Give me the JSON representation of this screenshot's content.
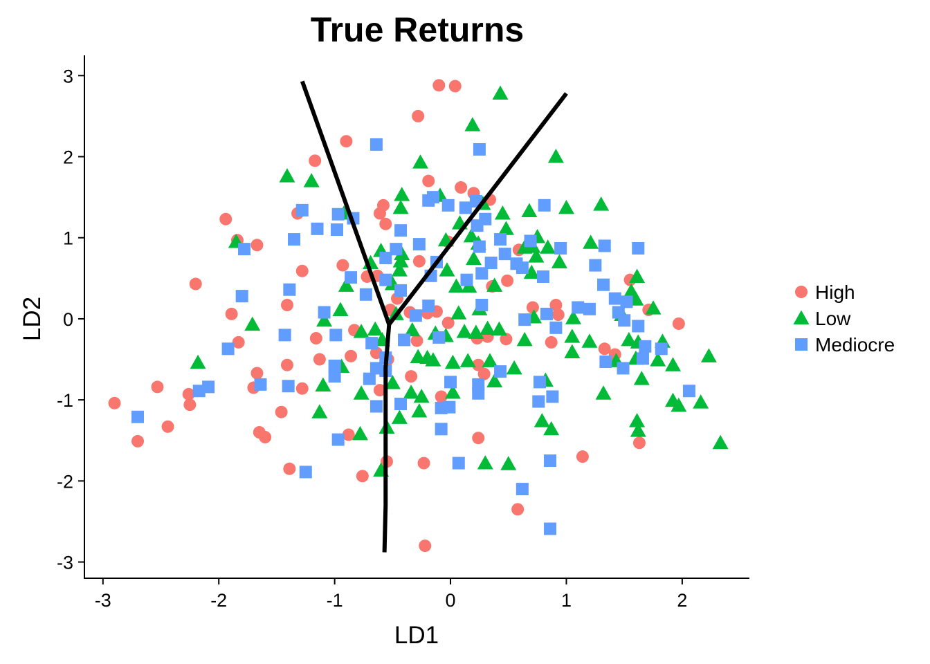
{
  "chart_data": {
    "type": "scatter",
    "title": "True Returns",
    "xlabel": "LD1",
    "ylabel": "LD2",
    "xlim": [
      -3.16,
      2.58
    ],
    "ylim": [
      -3.2,
      3.25
    ],
    "xticks": [
      -3,
      -2,
      -1,
      0,
      1,
      2
    ],
    "yticks": [
      -3,
      -2,
      -1,
      0,
      1,
      2,
      3
    ],
    "grid": false,
    "legend_position": "right",
    "series": [
      {
        "name": "High",
        "marker": "circle",
        "color": "#F8766D",
        "points": [
          [
            -0.1,
            2.88
          ],
          [
            0.04,
            2.87
          ],
          [
            -0.28,
            2.5
          ],
          [
            -0.9,
            2.19
          ],
          [
            -1.17,
            1.95
          ],
          [
            -0.19,
            1.7
          ],
          [
            0.09,
            1.62
          ],
          [
            0.2,
            1.55
          ],
          [
            -0.58,
            1.4
          ],
          [
            -0.61,
            1.3
          ],
          [
            -0.56,
            1.17
          ],
          [
            -1.32,
            1.3
          ],
          [
            -1.94,
            1.23
          ],
          [
            -1.84,
            0.97
          ],
          [
            -1.67,
            0.91
          ],
          [
            -0.02,
            0.95
          ],
          [
            0.34,
            1.47
          ],
          [
            0.59,
            0.85
          ],
          [
            -0.27,
            0.71
          ],
          [
            -1.28,
            0.59
          ],
          [
            -0.93,
            0.66
          ],
          [
            -0.72,
            0.52
          ],
          [
            -0.63,
            0.53
          ],
          [
            0.36,
            0.4
          ],
          [
            0.49,
            0.47
          ],
          [
            1.55,
            0.48
          ],
          [
            -2.2,
            0.43
          ],
          [
            -1.41,
            0.17
          ],
          [
            -0.46,
            0.25
          ],
          [
            -0.52,
            0.11
          ],
          [
            -0.35,
            0.08
          ],
          [
            -0.2,
            0.07
          ],
          [
            -0.12,
            0.09
          ],
          [
            -0.02,
            -0.05
          ],
          [
            0.71,
            0.14
          ],
          [
            0.91,
            0.17
          ],
          [
            0.93,
            0.05
          ],
          [
            1.71,
            0.11
          ],
          [
            1.97,
            -0.06
          ],
          [
            -1.89,
            0.06
          ],
          [
            -1.83,
            -0.29
          ],
          [
            -1.16,
            -0.24
          ],
          [
            -0.83,
            -0.14
          ],
          [
            -0.64,
            -0.42
          ],
          [
            -0.29,
            -0.27
          ],
          [
            0.23,
            -0.24
          ],
          [
            0.32,
            -0.22
          ],
          [
            0.48,
            -0.25
          ],
          [
            0.87,
            -0.29
          ],
          [
            1.33,
            -0.37
          ],
          [
            1.42,
            -0.44
          ],
          [
            -1.67,
            -0.67
          ],
          [
            -1.41,
            -0.57
          ],
          [
            -1.13,
            -0.5
          ],
          [
            -0.86,
            -0.46
          ],
          [
            -0.54,
            -0.5
          ],
          [
            -0.34,
            -0.71
          ],
          [
            0.24,
            -0.57
          ],
          [
            0.29,
            -0.68
          ],
          [
            -2.53,
            -0.84
          ],
          [
            -2.26,
            -0.93
          ],
          [
            -2.25,
            -1.06
          ],
          [
            -1.7,
            -0.85
          ],
          [
            -1.28,
            -0.86
          ],
          [
            -0.61,
            -0.88
          ],
          [
            -0.08,
            -0.96
          ],
          [
            -2.9,
            -1.04
          ],
          [
            -2.7,
            -1.51
          ],
          [
            -2.44,
            -1.33
          ],
          [
            -1.65,
            -1.4
          ],
          [
            -1.6,
            -1.46
          ],
          [
            -1.46,
            -1.15
          ],
          [
            -0.88,
            -1.43
          ],
          [
            -0.76,
            -1.94
          ],
          [
            -0.55,
            -1.76
          ],
          [
            -0.23,
            -1.78
          ],
          [
            0.24,
            -1.47
          ],
          [
            1.14,
            -1.7
          ],
          [
            1.63,
            -1.53
          ],
          [
            -1.39,
            -1.85
          ],
          [
            0.58,
            -2.35
          ],
          [
            -0.22,
            -2.8
          ]
        ]
      },
      {
        "name": "Low",
        "marker": "triangle",
        "color": "#00BA38",
        "points": [
          [
            0.43,
            2.78
          ],
          [
            0.19,
            2.39
          ],
          [
            0.91,
            2.0
          ],
          [
            -0.26,
            1.93
          ],
          [
            -1.41,
            1.76
          ],
          [
            -1.2,
            1.7
          ],
          [
            -0.09,
            1.52
          ],
          [
            0.28,
            1.42
          ],
          [
            -0.42,
            1.53
          ],
          [
            -0.43,
            1.37
          ],
          [
            1.0,
            1.37
          ],
          [
            1.3,
            1.41
          ],
          [
            -0.92,
            1.3
          ],
          [
            0.45,
            1.3
          ],
          [
            0.68,
            1.33
          ],
          [
            0.08,
            1.18
          ],
          [
            0.48,
            1.11
          ],
          [
            0.75,
            1.01
          ],
          [
            0.18,
            1.02
          ],
          [
            0.24,
            0.93
          ],
          [
            -0.04,
            0.97
          ],
          [
            1.21,
            0.94
          ],
          [
            0.84,
            0.88
          ],
          [
            0.64,
            0.88
          ],
          [
            0.71,
            0.89
          ],
          [
            -0.6,
            0.84
          ],
          [
            -0.42,
            0.8
          ],
          [
            -0.43,
            0.71
          ],
          [
            -0.69,
            0.69
          ],
          [
            0.2,
            0.74
          ],
          [
            0.74,
            0.77
          ],
          [
            0.94,
            0.7
          ],
          [
            -1.85,
            0.95
          ],
          [
            -0.44,
            0.6
          ],
          [
            -0.03,
            0.6
          ],
          [
            0.7,
            0.57
          ],
          [
            1.61,
            0.52
          ],
          [
            0.05,
            0.4
          ],
          [
            0.16,
            0.4
          ],
          [
            0.38,
            0.41
          ],
          [
            -0.5,
            0.43
          ],
          [
            -0.9,
            0.41
          ],
          [
            1.56,
            0.34
          ],
          [
            1.6,
            0.24
          ],
          [
            1.75,
            0.13
          ],
          [
            -0.95,
            0.11
          ],
          [
            -1.09,
            -0.02
          ],
          [
            -0.47,
            0.06
          ],
          [
            0.07,
            0.07
          ],
          [
            0.25,
            0.12
          ],
          [
            0.72,
            0.02
          ],
          [
            1.06,
            0.01
          ],
          [
            1.48,
            0.05
          ],
          [
            -1.71,
            -0.07
          ],
          [
            -0.77,
            -0.16
          ],
          [
            -0.65,
            -0.13
          ],
          [
            -0.33,
            -0.14
          ],
          [
            -0.13,
            -0.18
          ],
          [
            -0.04,
            -0.21
          ],
          [
            0.12,
            -0.16
          ],
          [
            0.22,
            -0.17
          ],
          [
            0.32,
            -0.12
          ],
          [
            0.42,
            -0.13
          ],
          [
            0.64,
            -0.26
          ],
          [
            1.05,
            -0.22
          ],
          [
            1.2,
            -0.28
          ],
          [
            1.54,
            -0.26
          ],
          [
            1.62,
            -0.29
          ],
          [
            1.83,
            -0.28
          ],
          [
            -0.59,
            -0.26
          ],
          [
            -0.28,
            -0.47
          ],
          [
            -0.2,
            -0.48
          ],
          [
            -0.15,
            -0.51
          ],
          [
            0.02,
            -0.54
          ],
          [
            0.15,
            -0.52
          ],
          [
            0.34,
            -0.52
          ],
          [
            0.55,
            -0.61
          ],
          [
            1.05,
            -0.41
          ],
          [
            1.43,
            -0.52
          ],
          [
            1.6,
            -0.49
          ],
          [
            1.79,
            -0.51
          ],
          [
            1.92,
            -0.57
          ],
          [
            2.23,
            -0.46
          ],
          [
            -2.18,
            -0.54
          ],
          [
            -1.1,
            -0.82
          ],
          [
            -0.94,
            -0.59
          ],
          [
            -0.77,
            -0.92
          ],
          [
            -0.5,
            -0.79
          ],
          [
            -0.34,
            -0.91
          ],
          [
            -0.25,
            -0.96
          ],
          [
            0.02,
            -0.91
          ],
          [
            0.38,
            -0.77
          ],
          [
            0.82,
            -0.76
          ],
          [
            1.32,
            -0.92
          ],
          [
            1.65,
            -0.74
          ],
          [
            1.92,
            -1.01
          ],
          [
            1.97,
            -1.07
          ],
          [
            2.16,
            -1.03
          ],
          [
            2.33,
            -1.53
          ],
          [
            -1.13,
            -1.15
          ],
          [
            -0.78,
            -1.42
          ],
          [
            -0.55,
            -1.34
          ],
          [
            -0.44,
            -1.22
          ],
          [
            -0.27,
            -1.14
          ],
          [
            0.79,
            -1.26
          ],
          [
            0.87,
            -1.36
          ],
          [
            1.61,
            -1.26
          ],
          [
            1.62,
            -1.38
          ],
          [
            0.3,
            -1.78
          ],
          [
            0.5,
            -1.79
          ],
          [
            -0.6,
            -1.87
          ]
        ]
      },
      {
        "name": "Mediocre",
        "marker": "square",
        "color": "#619CFF",
        "points": [
          [
            -0.64,
            2.15
          ],
          [
            0.25,
            2.09
          ],
          [
            -0.19,
            1.46
          ],
          [
            -0.02,
            1.4
          ],
          [
            -0.15,
            1.5
          ],
          [
            0.13,
            1.37
          ],
          [
            0.22,
            1.45
          ],
          [
            0.81,
            1.4
          ],
          [
            -1.28,
            1.34
          ],
          [
            -0.97,
            1.29
          ],
          [
            -0.84,
            1.24
          ],
          [
            -1.15,
            1.11
          ],
          [
            -0.98,
            1.1
          ],
          [
            -0.43,
            1.09
          ],
          [
            0.23,
            1.15
          ],
          [
            0.3,
            1.23
          ],
          [
            -1.35,
            0.98
          ],
          [
            -1.78,
            0.86
          ],
          [
            -0.47,
            0.86
          ],
          [
            -0.27,
            0.92
          ],
          [
            0.25,
            0.89
          ],
          [
            0.43,
            0.98
          ],
          [
            0.47,
            0.8
          ],
          [
            0.69,
            0.96
          ],
          [
            0.95,
            0.87
          ],
          [
            1.33,
            0.9
          ],
          [
            1.62,
            0.87
          ],
          [
            -0.56,
            0.75
          ],
          [
            -0.12,
            0.7
          ],
          [
            0.35,
            0.69
          ],
          [
            0.62,
            0.63
          ],
          [
            0.57,
            0.68
          ],
          [
            1.25,
            0.66
          ],
          [
            -0.86,
            0.51
          ],
          [
            -0.56,
            0.48
          ],
          [
            -0.17,
            0.53
          ],
          [
            0.14,
            0.48
          ],
          [
            0.27,
            0.56
          ],
          [
            0.8,
            0.52
          ],
          [
            1.32,
            0.42
          ],
          [
            -1.8,
            0.28
          ],
          [
            -1.39,
            0.36
          ],
          [
            -0.73,
            0.3
          ],
          [
            -0.43,
            0.35
          ],
          [
            -0.19,
            0.16
          ],
          [
            0.27,
            0.17
          ],
          [
            1.1,
            0.14
          ],
          [
            1.2,
            0.12
          ],
          [
            1.42,
            0.25
          ],
          [
            1.52,
            0.21
          ],
          [
            1.45,
            0.08
          ],
          [
            -1.09,
            0.08
          ],
          [
            -0.3,
            0.04
          ],
          [
            0.64,
            -0.01
          ],
          [
            0.83,
            0.06
          ],
          [
            1.5,
            -0.02
          ],
          [
            1.62,
            -0.09
          ],
          [
            -1.43,
            -0.2
          ],
          [
            -0.99,
            -0.2
          ],
          [
            -0.68,
            -0.3
          ],
          [
            -0.4,
            -0.26
          ],
          [
            -0.1,
            -0.23
          ],
          [
            0.91,
            -0.11
          ],
          [
            1.68,
            -0.34
          ],
          [
            1.82,
            -0.37
          ],
          [
            -1.92,
            -0.37
          ],
          [
            -1.0,
            -0.58
          ],
          [
            -0.56,
            -0.48
          ],
          [
            -0.64,
            -0.61
          ],
          [
            1.34,
            -0.53
          ],
          [
            1.49,
            -0.61
          ],
          [
            1.66,
            -0.49
          ],
          [
            -2.17,
            -0.89
          ],
          [
            -2.09,
            -0.84
          ],
          [
            -1.64,
            -0.81
          ],
          [
            -1.4,
            -0.83
          ],
          [
            -1.0,
            -0.71
          ],
          [
            -0.7,
            -0.74
          ],
          [
            -0.56,
            -0.64
          ],
          [
            0.0,
            -0.78
          ],
          [
            0.24,
            -0.81
          ],
          [
            0.24,
            -0.92
          ],
          [
            0.43,
            -0.65
          ],
          [
            0.77,
            -0.78
          ],
          [
            0.88,
            -0.96
          ],
          [
            2.06,
            -0.89
          ],
          [
            -2.7,
            -1.21
          ],
          [
            -0.64,
            -1.08
          ],
          [
            -0.43,
            -1.05
          ],
          [
            -0.08,
            -1.1
          ],
          [
            -0.01,
            -1.09
          ],
          [
            0.76,
            -1.02
          ],
          [
            -0.97,
            -1.49
          ],
          [
            -0.08,
            -1.36
          ],
          [
            0.07,
            -1.78
          ],
          [
            0.86,
            -1.75
          ],
          [
            -1.25,
            -1.89
          ],
          [
            0.62,
            -2.1
          ],
          [
            0.86,
            -2.59
          ]
        ]
      }
    ],
    "boundaries": [
      [
        [
          -1.28,
          2.93
        ],
        [
          -0.53,
          -0.07
        ]
      ],
      [
        [
          -0.53,
          -0.07
        ],
        [
          1.0,
          2.78
        ]
      ],
      [
        [
          -0.53,
          -0.07
        ],
        [
          -0.56,
          -0.6
        ],
        [
          -0.56,
          -2.3
        ],
        [
          -0.57,
          -2.88
        ]
      ]
    ]
  }
}
